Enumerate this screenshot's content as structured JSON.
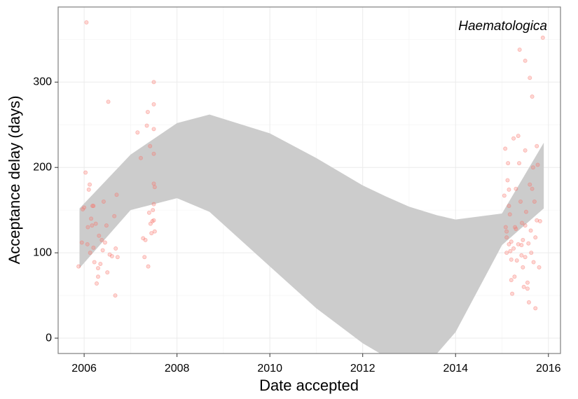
{
  "chart_data": {
    "type": "scatter",
    "annotation": "Haematologica",
    "xlabel": "Date accepted",
    "ylabel": "Acceptance delay (days)",
    "xlim": [
      2005.44,
      2016.26
    ],
    "ylim": [
      -18,
      388
    ],
    "xticks": [
      2006,
      2008,
      2010,
      2012,
      2014,
      2016
    ],
    "yticks": [
      0,
      100,
      200,
      300
    ],
    "minor_xticks": [
      2007,
      2009,
      2011,
      2013,
      2015
    ],
    "minor_yticks": [
      50,
      150,
      250,
      350
    ],
    "grid": true,
    "color": "#f8766d",
    "x": [
      2005.88,
      2005.95,
      2005.97,
      2006.0,
      2006.03,
      2006.05,
      2006.07,
      2006.08,
      2006.1,
      2006.12,
      2006.13,
      2006.15,
      2006.17,
      2006.18,
      2006.2,
      2006.22,
      2006.25,
      2006.27,
      2006.3,
      2006.32,
      2006.35,
      2006.38,
      2006.4,
      2006.42,
      2006.45,
      2006.48,
      2006.5,
      2006.52,
      2006.55,
      2006.6,
      2006.65,
      2006.67,
      2006.68,
      2006.7,
      2006.72,
      2006.3,
      2006.2,
      2007.15,
      2007.22,
      2007.27,
      2007.3,
      2007.32,
      2007.35,
      2007.37,
      2007.38,
      2007.4,
      2007.42,
      2007.43,
      2007.45,
      2007.47,
      2007.48,
      2007.5,
      2007.5,
      2007.5,
      2007.5,
      2007.5,
      2007.52,
      2007.5,
      2007.52,
      2007.5,
      2015.05,
      2015.07,
      2015.08,
      2015.1,
      2015.1,
      2015.12,
      2015.13,
      2015.15,
      2015.15,
      2015.17,
      2015.2,
      2015.2,
      2015.22,
      2015.25,
      2015.27,
      2015.3,
      2015.3,
      2015.32,
      2015.35,
      2015.37,
      2015.38,
      2015.4,
      2015.42,
      2015.43,
      2015.45,
      2015.47,
      2015.5,
      2015.5,
      2015.52,
      2015.55,
      2015.57,
      2015.58,
      2015.6,
      2015.6,
      2015.62,
      2015.65,
      2015.65,
      2015.67,
      2015.68,
      2015.7,
      2015.72,
      2015.75,
      2015.75,
      2015.77,
      2015.8,
      2015.82,
      2015.88,
      2015.1,
      2015.15,
      2015.28,
      2015.45,
      2015.5,
      2015.35,
      2015.55,
      2015.63,
      2015.72,
      2015.18,
      2015.25,
      2015.42,
      2015.5,
      2015.2
    ],
    "values": [
      84,
      112,
      151,
      153,
      194,
      370,
      110,
      130,
      174,
      180,
      100,
      140,
      132,
      155,
      106,
      89,
      134,
      64,
      72,
      120,
      87,
      115,
      103,
      160,
      112,
      132,
      77,
      277,
      98,
      96,
      143,
      50,
      105,
      168,
      95,
      82,
      155,
      241,
      211,
      117,
      95,
      115,
      249,
      265,
      84,
      147,
      225,
      134,
      123,
      137,
      150,
      300,
      274,
      245,
      216,
      181,
      177,
      157,
      125,
      138,
      167,
      222,
      130,
      118,
      100,
      185,
      205,
      174,
      155,
      145,
      113,
      92,
      52,
      234,
      72,
      128,
      175,
      91,
      237,
      205,
      338,
      160,
      109,
      135,
      83,
      60,
      325,
      220,
      148,
      65,
      111,
      42,
      305,
      180,
      126,
      283,
      175,
      200,
      89,
      160,
      35,
      225,
      138,
      203,
      83,
      137,
      352,
      125,
      110,
      130,
      115,
      95,
      110,
      58,
      100,
      118,
      102,
      105,
      97,
      132,
      68
    ],
    "band": {
      "color": "#cccccc",
      "x": [
        2005.9,
        2007,
        2008,
        2008.7,
        2010,
        2011,
        2012,
        2012.5,
        2013,
        2013.6,
        2014,
        2015,
        2015.9
      ],
      "lower": [
        82,
        150,
        164,
        148,
        84,
        35,
        -6,
        -22,
        -26,
        -18,
        7,
        109,
        152
      ],
      "upper": [
        152,
        215,
        252,
        262,
        240,
        211,
        179,
        166,
        154,
        144,
        139,
        146,
        229
      ]
    }
  }
}
